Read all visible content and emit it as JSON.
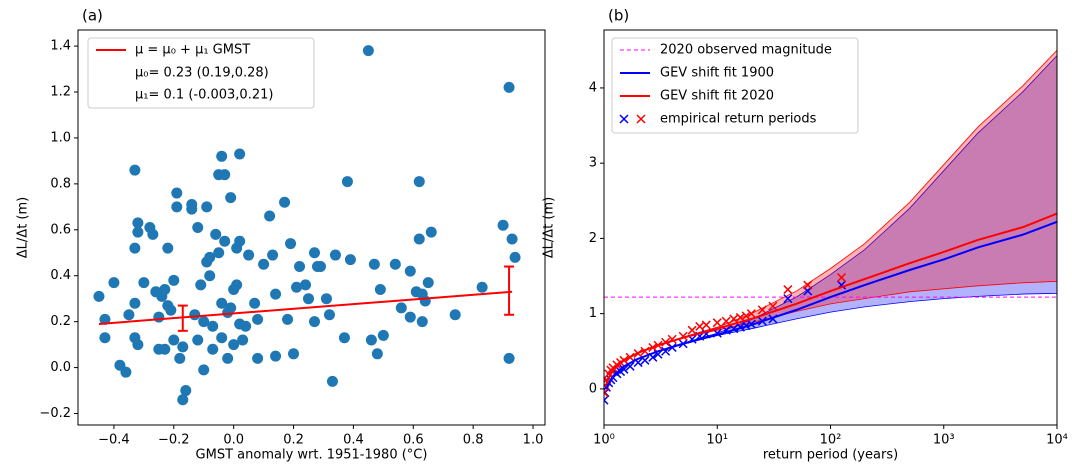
{
  "chart_data": [
    {
      "type": "scatter",
      "title": "(a)",
      "x_label": "GMST anomaly wrt. 1951-1980 (°C)",
      "y_label": "ΔL/Δt (m)",
      "color": "#1f77b4",
      "x": [
        -0.45,
        -0.43,
        -0.43,
        -0.4,
        -0.38,
        -0.36,
        -0.35,
        -0.33,
        -0.33,
        -0.33,
        -0.33,
        -0.32,
        -0.32,
        -0.32,
        -0.3,
        -0.28,
        -0.27,
        -0.26,
        -0.25,
        -0.25,
        -0.24,
        -0.23,
        -0.23,
        -0.22,
        -0.22,
        -0.21,
        -0.2,
        -0.2,
        -0.19,
        -0.19,
        -0.18,
        -0.17,
        -0.17,
        -0.16,
        -0.14,
        -0.14,
        -0.13,
        -0.12,
        -0.12,
        -0.11,
        -0.1,
        -0.1,
        -0.09,
        -0.09,
        -0.08,
        -0.08,
        -0.07,
        -0.07,
        -0.06,
        -0.05,
        -0.05,
        -0.04,
        -0.04,
        -0.04,
        -0.03,
        -0.03,
        -0.02,
        -0.02,
        -0.01,
        -0.01,
        0.0,
        0.0,
        0.01,
        0.01,
        0.02,
        0.02,
        0.02,
        0.03,
        0.04,
        0.05,
        0.07,
        0.08,
        0.08,
        0.1,
        0.12,
        0.13,
        0.14,
        0.14,
        0.17,
        0.18,
        0.19,
        0.2,
        0.21,
        0.22,
        0.24,
        0.25,
        0.27,
        0.27,
        0.28,
        0.29,
        0.31,
        0.32,
        0.33,
        0.34,
        0.37,
        0.38,
        0.39,
        0.45,
        0.46,
        0.47,
        0.48,
        0.49,
        0.5,
        0.54,
        0.56,
        0.59,
        0.59,
        0.61,
        0.62,
        0.62,
        0.63,
        0.63,
        0.64,
        0.65,
        0.66,
        0.74,
        0.83,
        0.9,
        0.92,
        0.92,
        0.93,
        0.94
      ],
      "values": [
        0.31,
        0.21,
        0.13,
        0.37,
        0.01,
        -0.02,
        0.23,
        0.86,
        0.52,
        0.28,
        0.13,
        0.63,
        0.59,
        0.1,
        0.37,
        0.61,
        0.58,
        0.33,
        0.08,
        0.22,
        0.31,
        0.34,
        0.08,
        0.52,
        0.27,
        0.25,
        0.38,
        0.12,
        0.76,
        0.7,
        0.04,
        -0.14,
        0.09,
        -0.1,
        0.71,
        0.69,
        0.23,
        0.61,
        0.12,
        0.36,
        0.2,
        -0.01,
        0.46,
        0.7,
        0.4,
        0.48,
        0.18,
        0.08,
        0.58,
        0.5,
        0.84,
        0.92,
        0.28,
        0.13,
        0.84,
        0.55,
        0.24,
        0.04,
        0.74,
        0.26,
        0.1,
        0.34,
        0.52,
        0.36,
        0.93,
        0.55,
        0.19,
        0.12,
        0.18,
        0.49,
        0.28,
        0.04,
        0.21,
        0.45,
        0.66,
        0.49,
        0.32,
        0.05,
        0.72,
        0.21,
        0.54,
        0.06,
        0.35,
        0.44,
        0.36,
        0.3,
        0.5,
        0.2,
        0.44,
        0.44,
        0.3,
        0.23,
        -0.06,
        0.49,
        0.13,
        0.81,
        0.47,
        1.38,
        0.12,
        0.45,
        0.06,
        0.34,
        0.14,
        0.45,
        0.26,
        0.42,
        0.22,
        0.33,
        0.81,
        0.56,
        0.2,
        0.32,
        0.29,
        0.37,
        0.59,
        0.23,
        0.35,
        0.62,
        1.22,
        0.04,
        0.56,
        0.48
      ],
      "fit": {
        "name": "μ = μ₀ + μ₁ GMST",
        "color": "red",
        "x": [
          -0.45,
          0.93
        ],
        "values": [
          0.19,
          0.33
        ]
      },
      "legend_notes": [
        "μ₀= 0.23 (0.19,0.28)",
        "μ₁= 0.1 (-0.003,0.21)"
      ],
      "errorbars": [
        {
          "x": -0.17,
          "value": 0.21,
          "low": 0.16,
          "high": 0.27
        },
        {
          "x": 0.92,
          "value": 0.33,
          "low": 0.23,
          "high": 0.44
        }
      ],
      "xlim": [
        -0.52,
        1.04
      ],
      "xticks": [
        {
          "value": -0.4,
          "label": "−0.4"
        },
        {
          "value": -0.2,
          "label": "−0.2"
        },
        {
          "value": 0,
          "label": "0.0"
        },
        0.2,
        0.4,
        0.6,
        0.8,
        {
          "value": 1,
          "label": "1.0"
        }
      ],
      "ylim": [
        -0.25,
        1.47
      ],
      "yticks": [
        {
          "value": -0.2,
          "label": "−0.2"
        },
        {
          "value": 0,
          "label": "0.0"
        },
        0.2,
        0.4,
        0.6,
        0.8,
        {
          "value": 1,
          "label": "1.0"
        },
        1.2,
        1.4
      ]
    },
    {
      "type": "line",
      "title": "(b)",
      "x_label": "return period (years)",
      "y_label": "ΔL/Δt (m)",
      "log_x": true,
      "observed": {
        "name": "2020 observed magnitude",
        "value": 1.22,
        "color": "magenta"
      },
      "x": [
        1.05,
        1.2,
        1.5,
        2,
        3,
        5,
        10,
        20,
        50,
        100,
        200,
        500,
        1000,
        2000,
        5000,
        10000
      ],
      "series": [
        {
          "name": "GEV shift fit 1900",
          "color": "blue",
          "values": [
            0.0,
            0.17,
            0.3,
            0.4,
            0.5,
            0.6,
            0.72,
            0.85,
            1.05,
            1.22,
            1.38,
            1.58,
            1.72,
            1.88,
            2.05,
            2.22
          ]
        },
        {
          "name": "GEV shift fit 2020",
          "color": "red",
          "values": [
            0.08,
            0.25,
            0.38,
            0.48,
            0.58,
            0.68,
            0.8,
            0.93,
            1.13,
            1.3,
            1.46,
            1.67,
            1.82,
            1.98,
            2.15,
            2.33
          ]
        }
      ],
      "bands": [
        {
          "color": "blue",
          "lower": [
            0.0,
            0.17,
            0.3,
            0.4,
            0.5,
            0.6,
            0.71,
            0.8,
            0.93,
            1.02,
            1.09,
            1.16,
            1.2,
            1.23,
            1.26,
            1.27
          ],
          "upper": [
            0.0,
            0.17,
            0.3,
            0.4,
            0.5,
            0.61,
            0.74,
            0.92,
            1.22,
            1.52,
            1.85,
            2.4,
            2.9,
            3.4,
            3.95,
            4.43
          ]
        },
        {
          "color": "red",
          "lower": [
            0.08,
            0.25,
            0.38,
            0.48,
            0.58,
            0.68,
            0.78,
            0.88,
            1.03,
            1.13,
            1.2,
            1.29,
            1.33,
            1.37,
            1.41,
            1.43
          ],
          "upper": [
            0.08,
            0.25,
            0.38,
            0.48,
            0.58,
            0.69,
            0.82,
            1.0,
            1.3,
            1.6,
            1.93,
            2.48,
            2.98,
            3.48,
            4.03,
            4.5
          ]
        }
      ],
      "empirical": {
        "name": "empirical return periods",
        "series": [
          {
            "color": "blue",
            "x": [
              1.0,
              1.02,
              1.05,
              1.1,
              1.15,
              1.2,
              1.3,
              1.4,
              1.5,
              1.7,
              2,
              2.3,
              2.7,
              3,
              3.5,
              4,
              5,
              6,
              7,
              8,
              10,
              12,
              14,
              16,
              18,
              20,
              25,
              31,
              42,
              63,
              125
            ],
            "values": [
              -0.15,
              -0.05,
              0.02,
              0.08,
              0.12,
              0.15,
              0.2,
              0.23,
              0.26,
              0.3,
              0.35,
              0.38,
              0.42,
              0.46,
              0.5,
              0.55,
              0.6,
              0.66,
              0.7,
              0.73,
              0.74,
              0.78,
              0.8,
              0.82,
              0.84,
              0.86,
              0.9,
              0.93,
              1.2,
              1.3,
              1.38
            ]
          },
          {
            "color": "red",
            "x": [
              1.0,
              1.02,
              1.05,
              1.1,
              1.15,
              1.2,
              1.3,
              1.4,
              1.5,
              1.7,
              2,
              2.3,
              2.7,
              3,
              3.5,
              4,
              5,
              6,
              7,
              8,
              10,
              12,
              14,
              16,
              18,
              20,
              25,
              31,
              42,
              63,
              125
            ],
            "values": [
              -0.05,
              0.05,
              0.12,
              0.2,
              0.25,
              0.28,
              0.32,
              0.35,
              0.38,
              0.42,
              0.47,
              0.5,
              0.55,
              0.58,
              0.62,
              0.66,
              0.7,
              0.78,
              0.83,
              0.85,
              0.88,
              0.9,
              0.93,
              0.95,
              0.97,
              1.0,
              1.05,
              1.1,
              1.32,
              1.38,
              1.48
            ]
          }
        ]
      },
      "xlim": [
        1,
        10000
      ],
      "xticks": [
        {
          "value": 1,
          "label": "10⁰"
        },
        {
          "value": 10,
          "label": "10¹"
        },
        {
          "value": 100,
          "label": "10²"
        },
        {
          "value": 1000,
          "label": "10³"
        },
        {
          "value": 10000,
          "label": "10⁴"
        }
      ],
      "ylim": [
        -0.48,
        4.77
      ],
      "yticks": [
        0,
        1,
        2,
        3,
        4
      ]
    }
  ]
}
